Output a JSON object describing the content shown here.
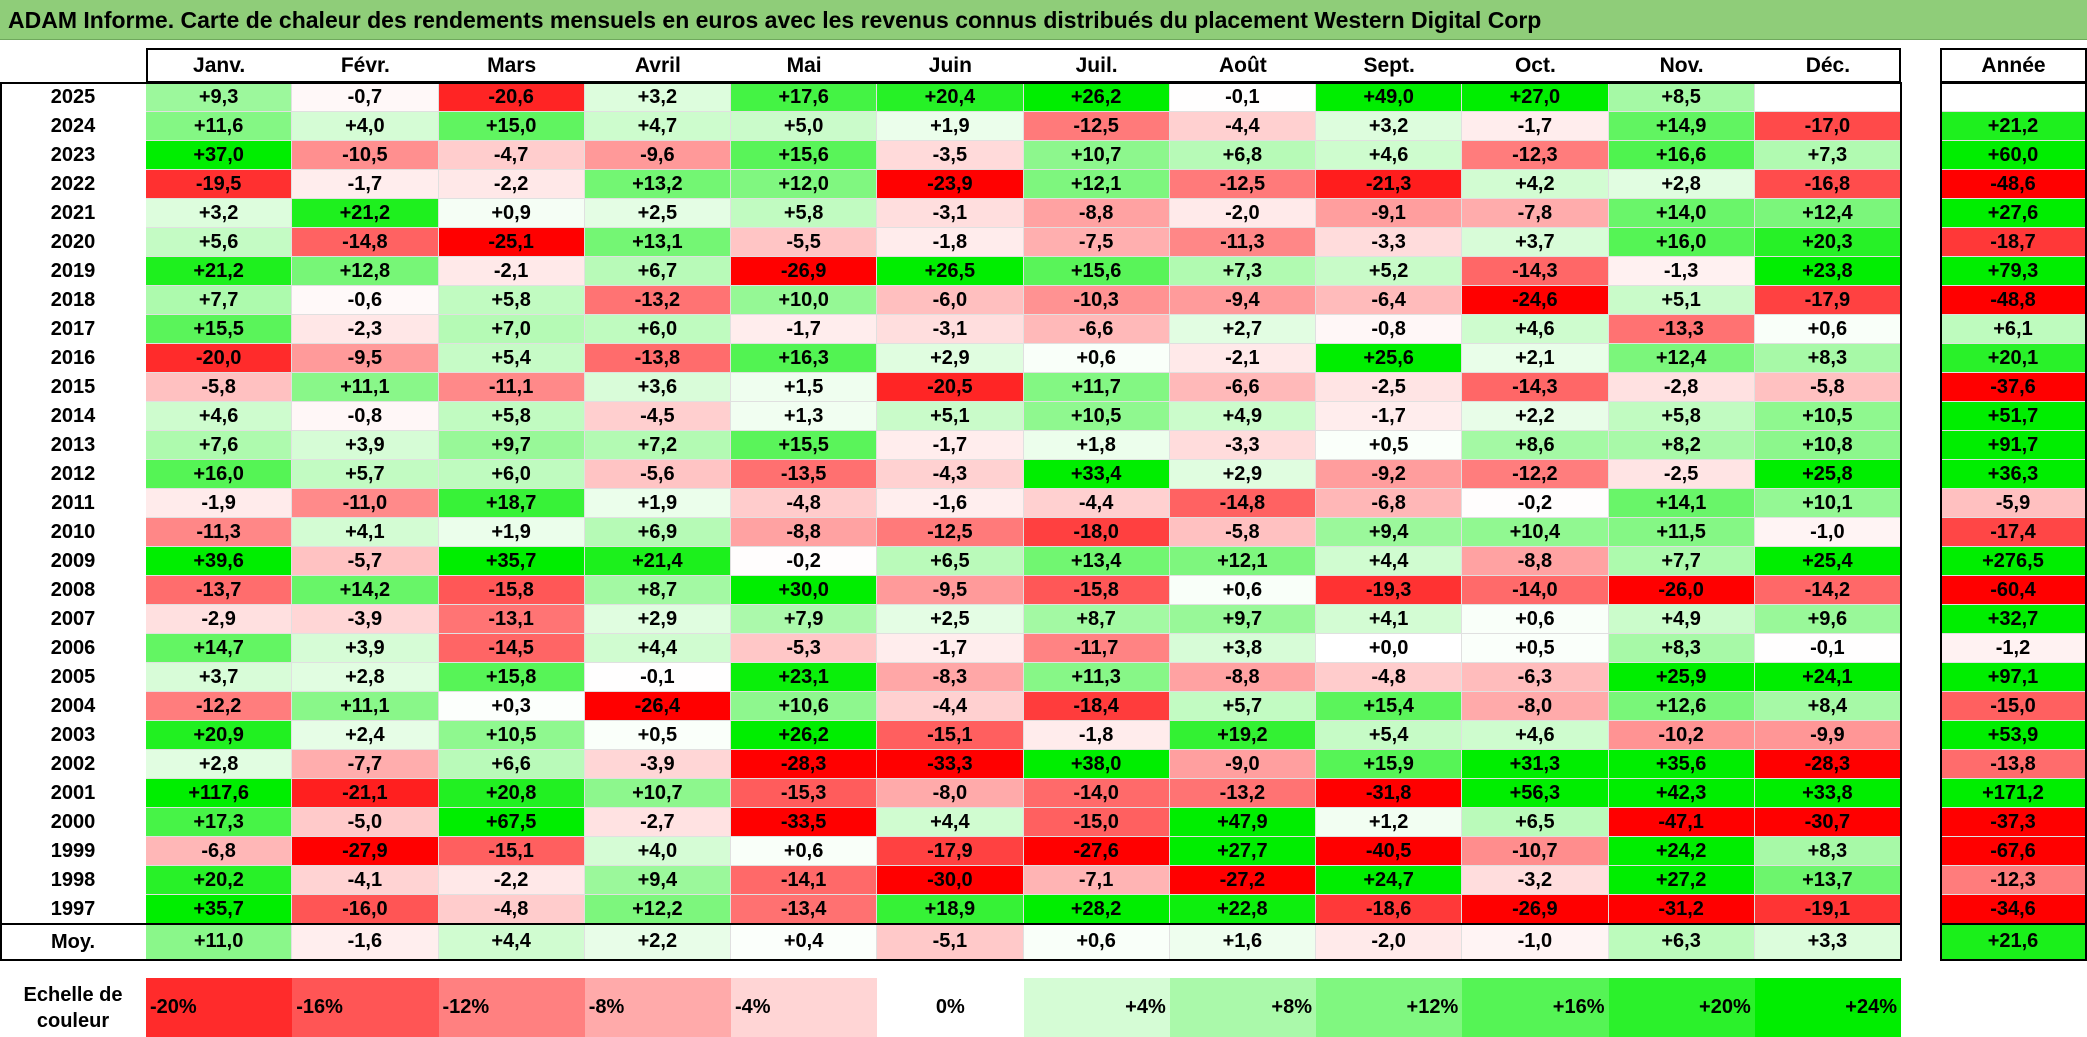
{
  "title": "ADAM Informe. Carte de chaleur des rendements mensuels en euros avec les revenus connus distribués du placement Western Digital Corp",
  "chart_data": {
    "type": "heatmap",
    "months": [
      "Janv.",
      "Févr.",
      "Mars",
      "Avril",
      "Mai",
      "Juin",
      "Juil.",
      "Août",
      "Sept.",
      "Oct.",
      "Nov.",
      "Déc."
    ],
    "year_header": "Année",
    "average_label": "Moy.",
    "rows": [
      {
        "year": "2025",
        "values": [
          "+9,3",
          "-0,7",
          "-20,6",
          "+3,2",
          "+17,6",
          "+20,4",
          "+26,2",
          "-0,1",
          "+49,0",
          "+27,0",
          "+8,5",
          ""
        ],
        "annual": ""
      },
      {
        "year": "2024",
        "values": [
          "+11,6",
          "+4,0",
          "+15,0",
          "+4,7",
          "+5,0",
          "+1,9",
          "-12,5",
          "-4,4",
          "+3,2",
          "-1,7",
          "+14,9",
          "-17,0"
        ],
        "annual": "+21,2"
      },
      {
        "year": "2023",
        "values": [
          "+37,0",
          "-10,5",
          "-4,7",
          "-9,6",
          "+15,6",
          "-3,5",
          "+10,7",
          "+6,8",
          "+4,6",
          "-12,3",
          "+16,6",
          "+7,3"
        ],
        "annual": "+60,0"
      },
      {
        "year": "2022",
        "values": [
          "-19,5",
          "-1,7",
          "-2,2",
          "+13,2",
          "+12,0",
          "-23,9",
          "+12,1",
          "-12,5",
          "-21,3",
          "+4,2",
          "+2,8",
          "-16,8"
        ],
        "annual": "-48,6"
      },
      {
        "year": "2021",
        "values": [
          "+3,2",
          "+21,2",
          "+0,9",
          "+2,5",
          "+5,8",
          "-3,1",
          "-8,8",
          "-2,0",
          "-9,1",
          "-7,8",
          "+14,0",
          "+12,4"
        ],
        "annual": "+27,6"
      },
      {
        "year": "2020",
        "values": [
          "+5,6",
          "-14,8",
          "-25,1",
          "+13,1",
          "-5,5",
          "-1,8",
          "-7,5",
          "-11,3",
          "-3,3",
          "+3,7",
          "+16,0",
          "+20,3"
        ],
        "annual": "-18,7"
      },
      {
        "year": "2019",
        "values": [
          "+21,2",
          "+12,8",
          "-2,1",
          "+6,7",
          "-26,9",
          "+26,5",
          "+15,6",
          "+7,3",
          "+5,2",
          "-14,3",
          "-1,3",
          "+23,8"
        ],
        "annual": "+79,3"
      },
      {
        "year": "2018",
        "values": [
          "+7,7",
          "-0,6",
          "+5,8",
          "-13,2",
          "+10,0",
          "-6,0",
          "-10,3",
          "-9,4",
          "-6,4",
          "-24,6",
          "+5,1",
          "-17,9"
        ],
        "annual": "-48,8"
      },
      {
        "year": "2017",
        "values": [
          "+15,5",
          "-2,3",
          "+7,0",
          "+6,0",
          "-1,7",
          "-3,1",
          "-6,6",
          "+2,7",
          "-0,8",
          "+4,6",
          "-13,3",
          "+0,6"
        ],
        "annual": "+6,1"
      },
      {
        "year": "2016",
        "values": [
          "-20,0",
          "-9,5",
          "+5,4",
          "-13,8",
          "+16,3",
          "+2,9",
          "+0,6",
          "-2,1",
          "+25,6",
          "+2,1",
          "+12,4",
          "+8,3"
        ],
        "annual": "+20,1"
      },
      {
        "year": "2015",
        "values": [
          "-5,8",
          "+11,1",
          "-11,1",
          "+3,6",
          "+1,5",
          "-20,5",
          "+11,7",
          "-6,6",
          "-2,5",
          "-14,3",
          "-2,8",
          "-5,8"
        ],
        "annual": "-37,6"
      },
      {
        "year": "2014",
        "values": [
          "+4,6",
          "-0,8",
          "+5,8",
          "-4,5",
          "+1,3",
          "+5,1",
          "+10,5",
          "+4,9",
          "-1,7",
          "+2,2",
          "+5,8",
          "+10,5"
        ],
        "annual": "+51,7"
      },
      {
        "year": "2013",
        "values": [
          "+7,6",
          "+3,9",
          "+9,7",
          "+7,2",
          "+15,5",
          "-1,7",
          "+1,8",
          "-3,3",
          "+0,5",
          "+8,6",
          "+8,2",
          "+10,8"
        ],
        "annual": "+91,7"
      },
      {
        "year": "2012",
        "values": [
          "+16,0",
          "+5,7",
          "+6,0",
          "-5,6",
          "-13,5",
          "-4,3",
          "+33,4",
          "+2,9",
          "-9,2",
          "-12,2",
          "-2,5",
          "+25,8"
        ],
        "annual": "+36,3"
      },
      {
        "year": "2011",
        "values": [
          "-1,9",
          "-11,0",
          "+18,7",
          "+1,9",
          "-4,8",
          "-1,6",
          "-4,4",
          "-14,8",
          "-6,8",
          "-0,2",
          "+14,1",
          "+10,1"
        ],
        "annual": "-5,9"
      },
      {
        "year": "2010",
        "values": [
          "-11,3",
          "+4,1",
          "+1,9",
          "+6,9",
          "-8,8",
          "-12,5",
          "-18,0",
          "-5,8",
          "+9,4",
          "+10,4",
          "+11,5",
          "-1,0"
        ],
        "annual": "-17,4"
      },
      {
        "year": "2009",
        "values": [
          "+39,6",
          "-5,7",
          "+35,7",
          "+21,4",
          "-0,2",
          "+6,5",
          "+13,4",
          "+12,1",
          "+4,4",
          "-8,8",
          "+7,7",
          "+25,4"
        ],
        "annual": "+276,5"
      },
      {
        "year": "2008",
        "values": [
          "-13,7",
          "+14,2",
          "-15,8",
          "+8,7",
          "+30,0",
          "-9,5",
          "-15,8",
          "+0,6",
          "-19,3",
          "-14,0",
          "-26,0",
          "-14,2"
        ],
        "annual": "-60,4"
      },
      {
        "year": "2007",
        "values": [
          "-2,9",
          "-3,9",
          "-13,1",
          "+2,9",
          "+7,9",
          "+2,5",
          "+8,7",
          "+9,7",
          "+4,1",
          "+0,6",
          "+4,9",
          "+9,6"
        ],
        "annual": "+32,7"
      },
      {
        "year": "2006",
        "values": [
          "+14,7",
          "+3,9",
          "-14,5",
          "+4,4",
          "-5,3",
          "-1,7",
          "-11,7",
          "+3,8",
          "+0,0",
          "+0,5",
          "+8,3",
          "-0,1"
        ],
        "annual": "-1,2"
      },
      {
        "year": "2005",
        "values": [
          "+3,7",
          "+2,8",
          "+15,8",
          "-0,1",
          "+23,1",
          "-8,3",
          "+11,3",
          "-8,8",
          "-4,8",
          "-6,3",
          "+25,9",
          "+24,1"
        ],
        "annual": "+97,1"
      },
      {
        "year": "2004",
        "values": [
          "-12,2",
          "+11,1",
          "+0,3",
          "-26,4",
          "+10,6",
          "-4,4",
          "-18,4",
          "+5,7",
          "+15,4",
          "-8,0",
          "+12,6",
          "+8,4"
        ],
        "annual": "-15,0"
      },
      {
        "year": "2003",
        "values": [
          "+20,9",
          "+2,4",
          "+10,5",
          "+0,5",
          "+26,2",
          "-15,1",
          "-1,8",
          "+19,2",
          "+5,4",
          "+4,6",
          "-10,2",
          "-9,9"
        ],
        "annual": "+53,9"
      },
      {
        "year": "2002",
        "values": [
          "+2,8",
          "-7,7",
          "+6,6",
          "-3,9",
          "-28,3",
          "-33,3",
          "+38,0",
          "-9,0",
          "+15,9",
          "+31,3",
          "+35,6",
          "-28,3"
        ],
        "annual": "-13,8"
      },
      {
        "year": "2001",
        "values": [
          "+117,6",
          "-21,1",
          "+20,8",
          "+10,7",
          "-15,3",
          "-8,0",
          "-14,0",
          "-13,2",
          "-31,8",
          "+56,3",
          "+42,3",
          "+33,8"
        ],
        "annual": "+171,2"
      },
      {
        "year": "2000",
        "values": [
          "+17,3",
          "-5,0",
          "+67,5",
          "-2,7",
          "-33,5",
          "+4,4",
          "-15,0",
          "+47,9",
          "+1,2",
          "+6,5",
          "-47,1",
          "-30,7"
        ],
        "annual": "-37,3"
      },
      {
        "year": "1999",
        "values": [
          "-6,8",
          "-27,9",
          "-15,1",
          "+4,0",
          "+0,6",
          "-17,9",
          "-27,6",
          "+27,7",
          "-40,5",
          "-10,7",
          "+24,2",
          "+8,3"
        ],
        "annual": "-67,6"
      },
      {
        "year": "1998",
        "values": [
          "+20,2",
          "-4,1",
          "-2,2",
          "+9,4",
          "-14,1",
          "-30,0",
          "-7,1",
          "-27,2",
          "+24,7",
          "-3,2",
          "+27,2",
          "+13,7"
        ],
        "annual": "-12,3"
      },
      {
        "year": "1997",
        "values": [
          "+35,7",
          "-16,0",
          "-4,8",
          "+12,2",
          "-13,4",
          "+18,9",
          "+28,2",
          "+22,8",
          "-18,6",
          "-26,9",
          "-31,2",
          "-19,1"
        ],
        "annual": "-34,6"
      }
    ],
    "average": {
      "values": [
        "+11,0",
        "-1,6",
        "+4,4",
        "+2,2",
        "+0,4",
        "-5,1",
        "+0,6",
        "+1,6",
        "-2,0",
        "-1,0",
        "+6,3",
        "+3,3"
      ],
      "annual": "+21,6"
    },
    "scale_label": "Echelle de couleur",
    "scale": [
      {
        "label": "-20%",
        "value": -20
      },
      {
        "label": "-16%",
        "value": -16
      },
      {
        "label": "-12%",
        "value": -12
      },
      {
        "label": "-8%",
        "value": -8
      },
      {
        "label": "-4%",
        "value": -4
      },
      {
        "label": "0%",
        "value": 0
      },
      {
        "label": "+4%",
        "value": 4
      },
      {
        "label": "+8%",
        "value": 8
      },
      {
        "label": "+12%",
        "value": 12
      },
      {
        "label": "+16%",
        "value": 16
      },
      {
        "label": "+20%",
        "value": 20
      },
      {
        "label": "+24%",
        "value": 24
      }
    ],
    "colors": {
      "negative_max": "#ff0000",
      "neutral": "#ffffff",
      "positive_max": "#00ee00",
      "title_bar": "#8fcd79"
    }
  }
}
